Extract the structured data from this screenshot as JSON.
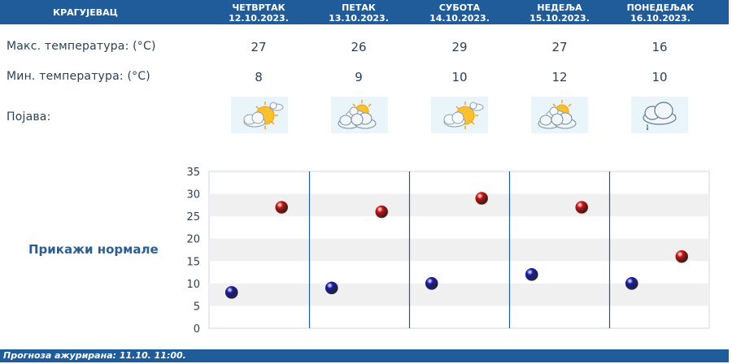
{
  "header": {
    "city": "КРАГУЈЕВАЦ",
    "days": [
      {
        "day": "ЧЕТВРТАК",
        "date": "12.10.2023."
      },
      {
        "day": "ПЕТАК",
        "date": "13.10.2023."
      },
      {
        "day": "СУБОТА",
        "date": "14.10.2023."
      },
      {
        "day": "НЕДЕЉА",
        "date": "15.10.2023."
      },
      {
        "day": "ПОНЕДЕЉАК",
        "date": "16.10.2023."
      }
    ]
  },
  "rows": {
    "max_label": "Макс. температура: (°C)",
    "min_label": "Мин. температура: (°C)",
    "weather_label": "Појава:",
    "max": [
      "27",
      "26",
      "29",
      "27",
      "16"
    ],
    "min": [
      "8",
      "9",
      "10",
      "12",
      "10"
    ],
    "icons": [
      "sun-behind-cloud-icon",
      "partly-cloudy-icon",
      "sun-behind-cloud-icon",
      "partly-cloudy-icon",
      "cloud-drizzle-icon"
    ]
  },
  "normals_button": "Прикажи нормале",
  "chart_data": {
    "type": "scatter",
    "ylim": [
      0,
      35
    ],
    "yticks": [
      "0",
      "5",
      "10",
      "15",
      "20",
      "25",
      "30",
      "35"
    ],
    "categories": [
      "12.10.2023.",
      "13.10.2023.",
      "14.10.2023.",
      "15.10.2023.",
      "16.10.2023."
    ],
    "series": [
      {
        "values": [
          8,
          9,
          10,
          12,
          10
        ],
        "color": "#1a1aa8"
      },
      {
        "values": [
          27,
          26,
          29,
          27,
          16
        ],
        "color": "#cc1414"
      }
    ],
    "grid": true
  },
  "footer": "Прогноза ажурирана:  11.10. 11:00."
}
